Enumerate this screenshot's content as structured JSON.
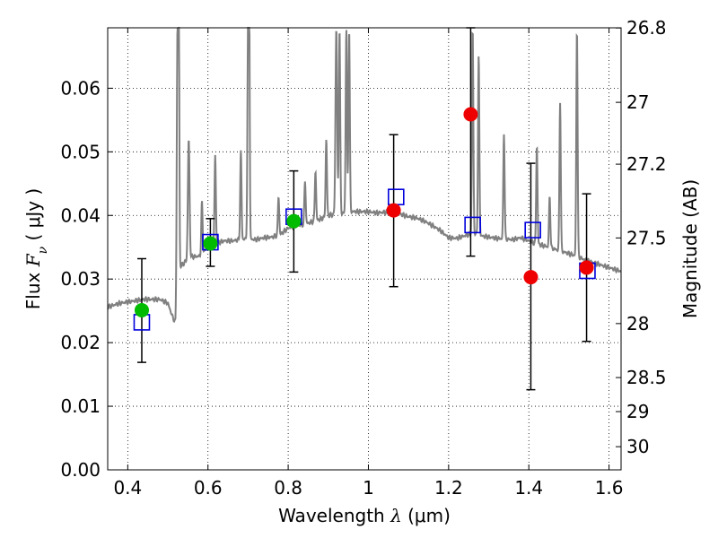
{
  "chart_data": {
    "type": "scatter",
    "xlabel": {
      "prefix": "Wavelength  ",
      "symbol": "λ",
      "unit": " (μm)"
    },
    "ylabel": {
      "prefix": "Flux  ",
      "symbol": "F",
      "subscript": "ν",
      "unit": "  ( μJy )"
    },
    "ylabel_right": "Magnitude (AB)",
    "xlim": [
      0.35,
      1.63
    ],
    "ylim": [
      0.0,
      0.0695
    ],
    "grid": true,
    "x_ticks": [
      0.4,
      0.6,
      0.8,
      1.0,
      1.2,
      1.4,
      1.6
    ],
    "x_tick_labels": [
      "0.4",
      "0.6",
      "0.8",
      "1",
      "1.2",
      "1.4",
      "1.6"
    ],
    "y_ticks": [
      0.0,
      0.01,
      0.02,
      0.03,
      0.04,
      0.05,
      0.06
    ],
    "y_tick_labels": [
      "0.00",
      "0.01",
      "0.02",
      "0.03",
      "0.04",
      "0.05",
      "0.06"
    ],
    "right_ticks": [
      {
        "label": "26.8",
        "flux": 0.06947
      },
      {
        "label": "27",
        "flux": 0.05778
      },
      {
        "label": "27.2",
        "flux": 0.04806
      },
      {
        "label": "27.5",
        "flux": 0.03646
      },
      {
        "label": "28",
        "flux": 0.023
      },
      {
        "label": "28.5",
        "flux": 0.01451
      },
      {
        "label": "29",
        "flux": 0.00916
      },
      {
        "label": "30",
        "flux": 0.00364
      }
    ],
    "green_points": [
      {
        "x": 0.435,
        "y": 0.0251
      },
      {
        "x": 0.606,
        "y": 0.0356
      },
      {
        "x": 0.814,
        "y": 0.0391
      }
    ],
    "red_points": [
      {
        "x": 1.063,
        "y": 0.0408,
        "yerr_low": 0.0288,
        "yerr_high": 0.0527
      },
      {
        "x": 1.255,
        "y": 0.0559,
        "yerr_low": 0.0336,
        "yerr_high": 0.0695
      },
      {
        "x": 1.405,
        "y": 0.0303,
        "yerr_low": 0.0126,
        "yerr_high": 0.0482
      },
      {
        "x": 1.544,
        "y": 0.0318,
        "yerr_low": 0.0202,
        "yerr_high": 0.0434
      }
    ],
    "errorbars": [
      {
        "x": 0.435,
        "low": 0.0169,
        "high": 0.0332
      },
      {
        "x": 0.606,
        "low": 0.032,
        "high": 0.0395
      },
      {
        "x": 0.814,
        "low": 0.0311,
        "high": 0.047
      }
    ],
    "model_squares": [
      {
        "x": 0.435,
        "y": 0.0232
      },
      {
        "x": 0.606,
        "y": 0.0358
      },
      {
        "x": 0.814,
        "y": 0.0398
      },
      {
        "x": 1.069,
        "y": 0.0429
      },
      {
        "x": 1.26,
        "y": 0.0385
      },
      {
        "x": 1.41,
        "y": 0.0377
      },
      {
        "x": 1.546,
        "y": 0.0313
      }
    ],
    "spectrum": {
      "color": "#808080",
      "continuum": [
        [
          0.35,
          0.0256
        ],
        [
          0.38,
          0.0262
        ],
        [
          0.4,
          0.0264
        ],
        [
          0.42,
          0.0266
        ],
        [
          0.44,
          0.0268
        ],
        [
          0.46,
          0.0268
        ],
        [
          0.48,
          0.0268
        ],
        [
          0.5,
          0.0262
        ],
        [
          0.512,
          0.024
        ],
        [
          0.519,
          0.0232
        ],
        [
          0.522,
          0.03
        ],
        [
          0.528,
          0.0318
        ],
        [
          0.535,
          0.0322
        ],
        [
          0.545,
          0.0328
        ],
        [
          0.56,
          0.0335
        ],
        [
          0.58,
          0.0336
        ],
        [
          0.6,
          0.035
        ],
        [
          0.62,
          0.0356
        ],
        [
          0.64,
          0.036
        ],
        [
          0.66,
          0.036
        ],
        [
          0.68,
          0.0362
        ],
        [
          0.7,
          0.0363
        ],
        [
          0.72,
          0.0362
        ],
        [
          0.74,
          0.0365
        ],
        [
          0.76,
          0.0366
        ],
        [
          0.78,
          0.037
        ],
        [
          0.8,
          0.038
        ],
        [
          0.82,
          0.0384
        ],
        [
          0.84,
          0.0386
        ],
        [
          0.86,
          0.039
        ],
        [
          0.88,
          0.0394
        ],
        [
          0.9,
          0.04
        ],
        [
          0.92,
          0.0402
        ],
        [
          0.94,
          0.0404
        ],
        [
          0.96,
          0.0406
        ],
        [
          0.98,
          0.0406
        ],
        [
          1.0,
          0.0406
        ],
        [
          1.02,
          0.0404
        ],
        [
          1.04,
          0.0405
        ],
        [
          1.06,
          0.0405
        ],
        [
          1.08,
          0.0402
        ],
        [
          1.1,
          0.0398
        ],
        [
          1.12,
          0.0396
        ],
        [
          1.14,
          0.0391
        ],
        [
          1.16,
          0.0384
        ],
        [
          1.18,
          0.0376
        ],
        [
          1.2,
          0.0365
        ],
        [
          1.22,
          0.0364
        ],
        [
          1.24,
          0.0368
        ],
        [
          1.26,
          0.0372
        ],
        [
          1.28,
          0.0368
        ],
        [
          1.3,
          0.0366
        ],
        [
          1.32,
          0.0364
        ],
        [
          1.34,
          0.0363
        ],
        [
          1.36,
          0.0362
        ],
        [
          1.38,
          0.0365
        ],
        [
          1.4,
          0.036
        ],
        [
          1.42,
          0.0355
        ],
        [
          1.44,
          0.0352
        ],
        [
          1.46,
          0.0348
        ],
        [
          1.48,
          0.0344
        ],
        [
          1.5,
          0.034
        ],
        [
          1.52,
          0.0336
        ],
        [
          1.54,
          0.033
        ],
        [
          1.56,
          0.0326
        ],
        [
          1.58,
          0.0322
        ],
        [
          1.6,
          0.0318
        ],
        [
          1.63,
          0.0312
        ]
      ],
      "lines": [
        {
          "x": 0.524,
          "peak": 0.0695,
          "width": 0.004
        },
        {
          "x": 0.5275,
          "peak": 0.0695,
          "width": 0.003
        },
        {
          "x": 0.552,
          "peak": 0.052,
          "width": 0.005
        },
        {
          "x": 0.585,
          "peak": 0.042,
          "width": 0.004
        },
        {
          "x": 0.618,
          "peak": 0.0495,
          "width": 0.004
        },
        {
          "x": 0.682,
          "peak": 0.05,
          "width": 0.004
        },
        {
          "x": 0.7,
          "peak": 0.0695,
          "width": 0.004
        },
        {
          "x": 0.703,
          "peak": 0.0695,
          "width": 0.003
        },
        {
          "x": 0.776,
          "peak": 0.043,
          "width": 0.004
        },
        {
          "x": 0.842,
          "peak": 0.0455,
          "width": 0.004
        },
        {
          "x": 0.868,
          "peak": 0.047,
          "width": 0.004
        },
        {
          "x": 0.895,
          "peak": 0.052,
          "width": 0.004
        },
        {
          "x": 0.92,
          "peak": 0.0695,
          "width": 0.005
        },
        {
          "x": 0.928,
          "peak": 0.0695,
          "width": 0.004
        },
        {
          "x": 0.945,
          "peak": 0.0695,
          "width": 0.004
        },
        {
          "x": 0.952,
          "peak": 0.0695,
          "width": 0.004
        },
        {
          "x": 1.26,
          "peak": 0.0695,
          "width": 0.004
        },
        {
          "x": 1.275,
          "peak": 0.065,
          "width": 0.004
        },
        {
          "x": 1.338,
          "peak": 0.053,
          "width": 0.004
        },
        {
          "x": 1.42,
          "peak": 0.051,
          "width": 0.004
        },
        {
          "x": 1.452,
          "peak": 0.043,
          "width": 0.004
        },
        {
          "x": 1.478,
          "peak": 0.058,
          "width": 0.004
        },
        {
          "x": 1.52,
          "peak": 0.0695,
          "width": 0.004
        }
      ]
    },
    "colors": {
      "green": "#00bb00",
      "red": "#ee0000",
      "square": "#0000dd",
      "errorbar": "#000000"
    }
  }
}
